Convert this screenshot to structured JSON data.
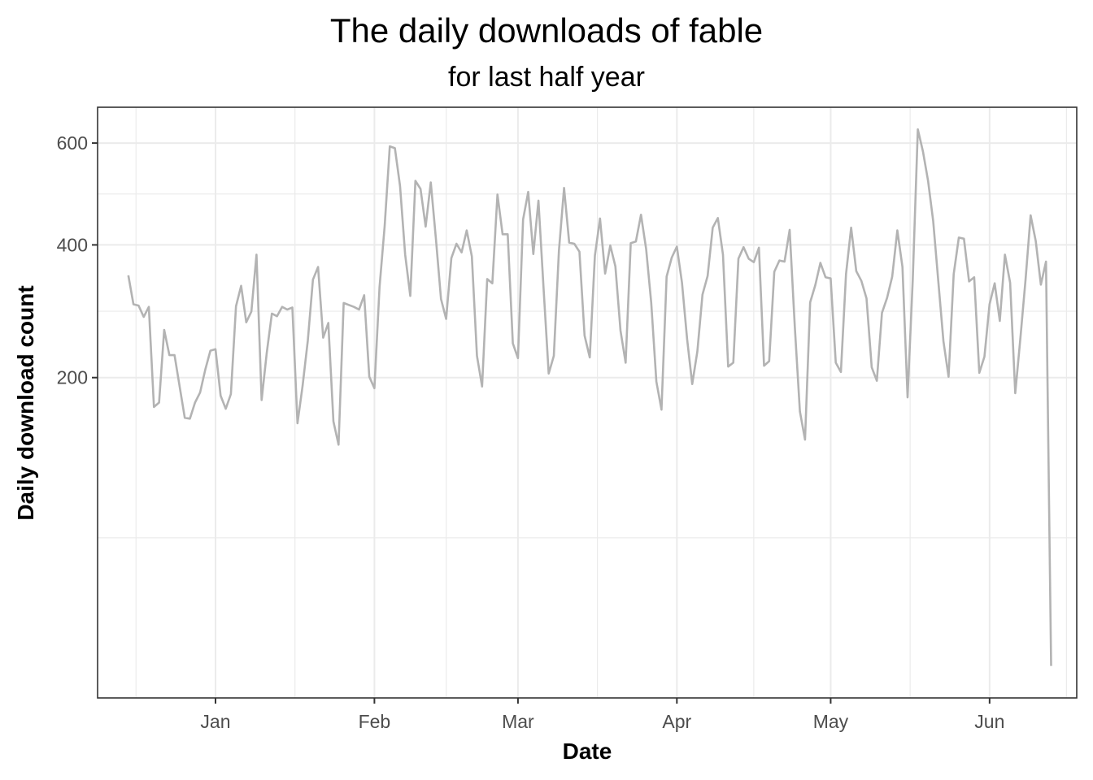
{
  "chart_data": {
    "type": "line",
    "title": "The daily downloads of fable",
    "subtitle": "for last half year",
    "xlabel": "Date",
    "ylabel": "Daily download count",
    "x_ticks": [
      "Jan",
      "Feb",
      "Mar",
      "Apr",
      "May",
      "Jun"
    ],
    "y_ticks": [
      200,
      400,
      600
    ],
    "y_scale": "sqrt",
    "xlim": [
      "2017-12-09",
      "2018-06-18"
    ],
    "ylim": [
      0,
      680
    ],
    "grid": true,
    "x_start": "2017-12-15",
    "series": [
      {
        "color": "#b3b3b3",
        "values": [
          348,
          302,
          300,
          283,
          298,
          165,
          170,
          264,
          229,
          229,
          189,
          153,
          152,
          170,
          182,
          210,
          235,
          237,
          178,
          163,
          180,
          299,
          331,
          275,
          291,
          383,
          173,
          232,
          288,
          284,
          298,
          294,
          297,
          147,
          190,
          249,
          341,
          362,
          253,
          274,
          149,
          125,
          304,
          301,
          298,
          294,
          316,
          201,
          187,
          329,
          434,
          593,
          589,
          511,
          383,
          315,
          521,
          505,
          433,
          518,
          411,
          310,
          280,
          377,
          402,
          387,
          426,
          380,
          228,
          189,
          342,
          335,
          494,
          419,
          419,
          245,
          225,
          446,
          499,
          384,
          482,
          327,
          205,
          228,
          390,
          507,
          404,
          402,
          388,
          256,
          226,
          381,
          448,
          351,
          399,
          363,
          263,
          219,
          403,
          406,
          455,
          393,
          304,
          195,
          162,
          346,
          378,
          397,
          336,
          251,
          192,
          234,
          317,
          347,
          431,
          449,
          383,
          214,
          219,
          376,
          396,
          376,
          370,
          395,
          215,
          221,
          354,
          373,
          371,
          427,
          269,
          160,
          130,
          305,
          332,
          369,
          345,
          343,
          219,
          207,
          350,
          431,
          355,
          339,
          311,
          213,
          196,
          289,
          312,
          346,
          426,
          362,
          176,
          339,
          630,
          582,
          521,
          443,
          338,
          248,
          201,
          350,
          413,
          411,
          338,
          345,
          206,
          227,
          302,
          335,
          277,
          383,
          336,
          181,
          252,
          340,
          454,
          407,
          333,
          371,
          2
        ]
      }
    ]
  }
}
